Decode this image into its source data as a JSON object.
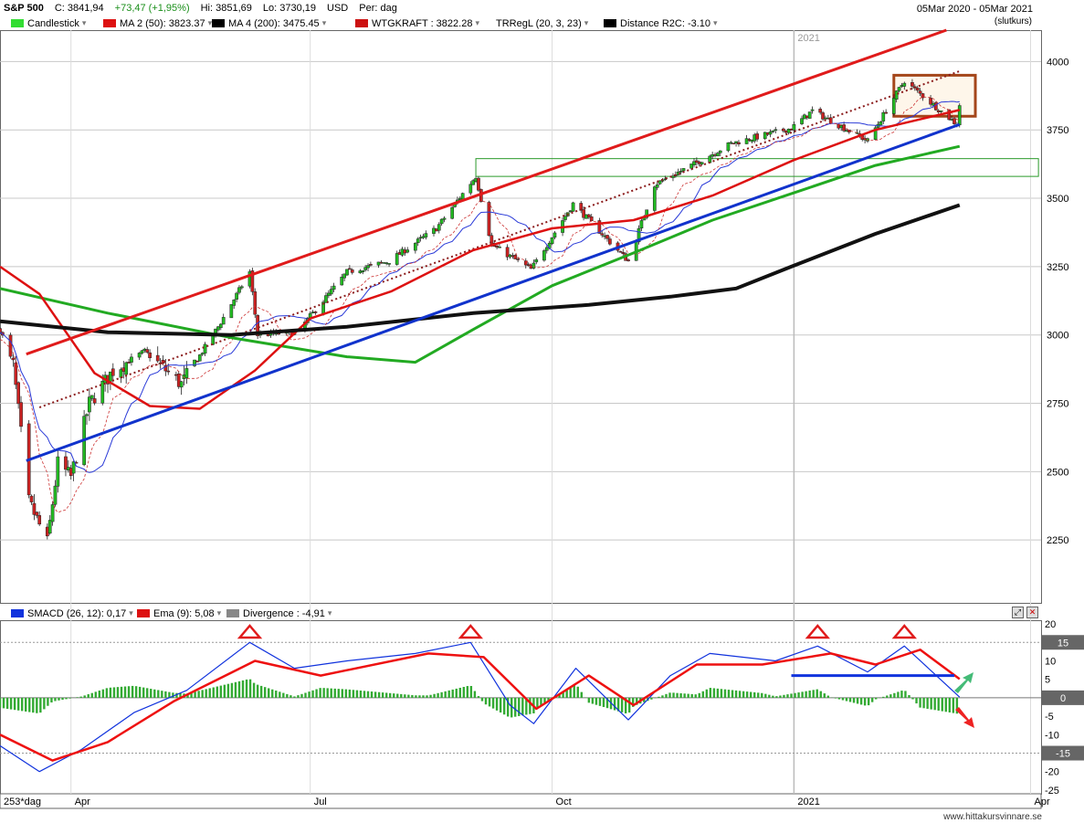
{
  "header": {
    "symbol": "S&P 500",
    "close": "C: 3841,94",
    "change": "+73,47 (+1,95%)",
    "high": "Hi: 3851,69",
    "low": "Lo: 3730,19",
    "currency": "USD",
    "period": "Per: dag",
    "date_range": "05Mar 2020 - 05Mar 2021",
    "price_basis": "(slutkurs)"
  },
  "legend_main": [
    {
      "label": "Candlestick",
      "color": "#33dd33"
    },
    {
      "label": "MA 2 (50): 3823.37",
      "color": "#dd1111"
    },
    {
      "label": "MA 4 (200): 3475.45",
      "color": "#000000"
    },
    {
      "label": "WTGKRAFT : 3822.28",
      "color": "#cc1111"
    },
    {
      "label": "TRRegL (20, 3, 23)",
      "color": ""
    },
    {
      "label": "Distance R2C: -3.10",
      "color": "#000000"
    }
  ],
  "legend_macd": [
    {
      "label": "SMACD (26, 12): 0,17",
      "color": "#1133dd"
    },
    {
      "label": "Ema (9): 5,08",
      "color": "#dd1111"
    },
    {
      "label": "Divergence : -4,91",
      "color": "#888888"
    }
  ],
  "year_label": "2021",
  "period_label": "253*dag",
  "watermark": "www.hittakursvinnare.se",
  "colors": {
    "up": "#22bb22",
    "down": "#cc2222",
    "ma50": "#dd1111",
    "ma200": "#111111",
    "ma100": "#22aa22",
    "trend": "#1133cc",
    "macd": "#1133dd",
    "signal": "#ee1111",
    "hist": "#33aa33"
  },
  "chart_data": [
    {
      "type": "candlestick",
      "title": "S&P 500",
      "x_ticks": [
        {
          "label": "Apr",
          "date": "2020-04-01"
        },
        {
          "label": "Jul",
          "date": "2020-07-01"
        },
        {
          "label": "Oct",
          "date": "2020-10-01"
        },
        {
          "label": "2021",
          "date": "2021-01-01"
        },
        {
          "label": "Apr",
          "date": "2021-04-01"
        }
      ],
      "xlim": [
        "2020-03-05",
        "2021-04-05"
      ],
      "y_ticks": [
        4000,
        3750,
        3500,
        3250,
        3000,
        2750,
        2500,
        2250
      ],
      "ylim": [
        2020,
        4115
      ],
      "close_path": [
        {
          "date": "2020-03-05",
          "value": 3020
        },
        {
          "date": "2020-03-10",
          "value": 2890
        },
        {
          "date": "2020-03-16",
          "value": 2390
        },
        {
          "date": "2020-03-23",
          "value": 2240
        },
        {
          "date": "2020-03-27",
          "value": 2530
        },
        {
          "date": "2020-04-01",
          "value": 2480
        },
        {
          "date": "2020-04-08",
          "value": 2750
        },
        {
          "date": "2020-04-17",
          "value": 2870
        },
        {
          "date": "2020-04-29",
          "value": 2940
        },
        {
          "date": "2020-05-13",
          "value": 2820
        },
        {
          "date": "2020-05-27",
          "value": 3030
        },
        {
          "date": "2020-06-08",
          "value": 3230
        },
        {
          "date": "2020-06-11",
          "value": 3000
        },
        {
          "date": "2020-06-26",
          "value": 3010
        },
        {
          "date": "2020-07-15",
          "value": 3230
        },
        {
          "date": "2020-07-31",
          "value": 3270
        },
        {
          "date": "2020-08-18",
          "value": 3390
        },
        {
          "date": "2020-09-02",
          "value": 3580
        },
        {
          "date": "2020-09-08",
          "value": 3330
        },
        {
          "date": "2020-09-23",
          "value": 3240
        },
        {
          "date": "2020-10-09",
          "value": 3480
        },
        {
          "date": "2020-10-30",
          "value": 3270
        },
        {
          "date": "2020-11-09",
          "value": 3550
        },
        {
          "date": "2020-11-25",
          "value": 3630
        },
        {
          "date": "2020-12-08",
          "value": 3700
        },
        {
          "date": "2020-12-31",
          "value": 3756
        },
        {
          "date": "2021-01-08",
          "value": 3820
        },
        {
          "date": "2021-01-29",
          "value": 3710
        },
        {
          "date": "2021-02-12",
          "value": 3930
        },
        {
          "date": "2021-03-04",
          "value": 3770
        },
        {
          "date": "2021-03-05",
          "value": 3842
        }
      ],
      "series": [
        {
          "name": "MA 2 (50)",
          "points": [
            {
              "date": "2020-03-05",
              "value": 3250
            },
            {
              "date": "2020-03-20",
              "value": 3150
            },
            {
              "date": "2020-04-10",
              "value": 2860
            },
            {
              "date": "2020-05-01",
              "value": 2740
            },
            {
              "date": "2020-05-20",
              "value": 2730
            },
            {
              "date": "2020-06-10",
              "value": 2870
            },
            {
              "date": "2020-07-01",
              "value": 3060
            },
            {
              "date": "2020-08-01",
              "value": 3160
            },
            {
              "date": "2020-09-01",
              "value": 3310
            },
            {
              "date": "2020-10-01",
              "value": 3390
            },
            {
              "date": "2020-11-01",
              "value": 3420
            },
            {
              "date": "2020-12-01",
              "value": 3510
            },
            {
              "date": "2021-01-01",
              "value": 3640
            },
            {
              "date": "2021-02-01",
              "value": 3750
            },
            {
              "date": "2021-03-05",
              "value": 3823
            }
          ]
        },
        {
          "name": "MA 4 (200)",
          "points": [
            {
              "date": "2020-03-05",
              "value": 3050
            },
            {
              "date": "2020-04-15",
              "value": 3010
            },
            {
              "date": "2020-06-01",
              "value": 3000
            },
            {
              "date": "2020-07-15",
              "value": 3030
            },
            {
              "date": "2020-09-01",
              "value": 3080
            },
            {
              "date": "2020-10-15",
              "value": 3110
            },
            {
              "date": "2020-11-15",
              "value": 3140
            },
            {
              "date": "2020-12-10",
              "value": 3170
            },
            {
              "date": "2020-12-31",
              "value": 3250
            },
            {
              "date": "2021-02-01",
              "value": 3370
            },
            {
              "date": "2021-03-05",
              "value": 3475
            }
          ]
        }
      ],
      "green_ma": [
        {
          "date": "2020-03-05",
          "value": 3170
        },
        {
          "date": "2020-04-15",
          "value": 3080
        },
        {
          "date": "2020-06-01",
          "value": 2990
        },
        {
          "date": "2020-07-15",
          "value": 2920
        },
        {
          "date": "2020-08-10",
          "value": 2900
        },
        {
          "date": "2020-09-01",
          "value": 3020
        },
        {
          "date": "2020-10-01",
          "value": 3180
        },
        {
          "date": "2020-11-01",
          "value": 3300
        },
        {
          "date": "2020-12-01",
          "value": 3420
        },
        {
          "date": "2021-01-01",
          "value": 3520
        },
        {
          "date": "2021-02-01",
          "value": 3620
        },
        {
          "date": "2021-03-05",
          "value": 3690
        }
      ],
      "trend_lines": {
        "red_upper": [
          {
            "date": "2020-03-15",
            "value": 2930
          },
          {
            "date": "2021-02-28",
            "value": 4115
          }
        ],
        "blue_support": [
          {
            "date": "2020-03-15",
            "value": 2540
          },
          {
            "date": "2021-03-05",
            "value": 3770
          }
        ]
      },
      "zones": {
        "green_box": {
          "date_start": "2020-09-02",
          "date_end": "2021-04-04",
          "low": 3580,
          "high": 3645
        },
        "orange_box": {
          "date_start": "2021-02-08",
          "date_end": "2021-03-11",
          "low": 3800,
          "high": 3950
        }
      }
    },
    {
      "type": "line",
      "title": "SMACD",
      "y_ticks": [
        20,
        10,
        5.0,
        0,
        -5.0,
        -10,
        -20,
        -25
      ],
      "highlighted_ticks": [
        15,
        0,
        -15
      ],
      "ylim": [
        -26,
        21
      ],
      "series": [
        {
          "name": "SMACD (26, 12)",
          "points": [
            {
              "date": "2020-03-05",
              "value": -13
            },
            {
              "date": "2020-03-20",
              "value": -20
            },
            {
              "date": "2020-04-05",
              "value": -14
            },
            {
              "date": "2020-04-25",
              "value": -4
            },
            {
              "date": "2020-05-15",
              "value": 2
            },
            {
              "date": "2020-06-08",
              "value": 15
            },
            {
              "date": "2020-06-25",
              "value": 8
            },
            {
              "date": "2020-07-15",
              "value": 10
            },
            {
              "date": "2020-08-10",
              "value": 12
            },
            {
              "date": "2020-08-31",
              "value": 15
            },
            {
              "date": "2020-09-15",
              "value": -2
            },
            {
              "date": "2020-09-24",
              "value": -7
            },
            {
              "date": "2020-10-10",
              "value": 8
            },
            {
              "date": "2020-10-30",
              "value": -6
            },
            {
              "date": "2020-11-15",
              "value": 6
            },
            {
              "date": "2020-11-30",
              "value": 12
            },
            {
              "date": "2020-12-25",
              "value": 10
            },
            {
              "date": "2021-01-10",
              "value": 14
            },
            {
              "date": "2021-01-29",
              "value": 7
            },
            {
              "date": "2021-02-12",
              "value": 14
            },
            {
              "date": "2021-03-05",
              "value": 0.17
            }
          ]
        },
        {
          "name": "Ema (9)",
          "points": [
            {
              "date": "2020-03-05",
              "value": -10
            },
            {
              "date": "2020-03-25",
              "value": -17
            },
            {
              "date": "2020-04-15",
              "value": -12
            },
            {
              "date": "2020-05-10",
              "value": -1
            },
            {
              "date": "2020-06-10",
              "value": 10
            },
            {
              "date": "2020-07-05",
              "value": 6
            },
            {
              "date": "2020-08-15",
              "value": 12
            },
            {
              "date": "2020-09-05",
              "value": 11
            },
            {
              "date": "2020-09-25",
              "value": -3
            },
            {
              "date": "2020-10-15",
              "value": 6
            },
            {
              "date": "2020-11-01",
              "value": -2
            },
            {
              "date": "2020-11-25",
              "value": 9
            },
            {
              "date": "2020-12-20",
              "value": 9
            },
            {
              "date": "2021-01-15",
              "value": 12
            },
            {
              "date": "2021-02-01",
              "value": 9
            },
            {
              "date": "2021-02-18",
              "value": 13
            },
            {
              "date": "2021-03-05",
              "value": 5.08
            }
          ]
        }
      ],
      "annotation_lines": {
        "blue_horizontal": {
          "date_start": "2020-12-31",
          "date_end": "2021-03-03",
          "value": 6
        }
      }
    }
  ]
}
